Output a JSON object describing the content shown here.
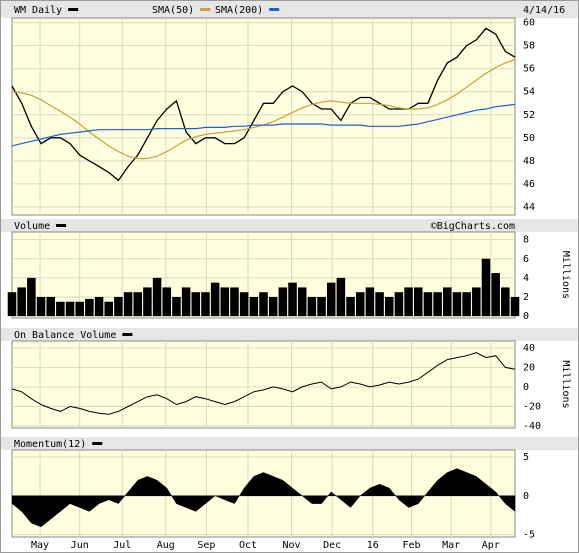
{
  "chart_data": [
    {
      "type": "line",
      "date": "4/14/16",
      "series": [
        {
          "name": "WM Daily",
          "color": "#000000",
          "values": [
            54.5,
            53,
            51,
            49.5,
            50,
            50,
            49.5,
            48.5,
            48,
            47.5,
            47,
            46.3,
            47.5,
            48.5,
            50,
            51.5,
            52.5,
            53.2,
            50.5,
            49.5,
            50,
            50,
            49.5,
            49.5,
            50,
            51.5,
            53,
            53,
            54,
            54.5,
            54,
            53,
            52.5,
            52.5,
            51.5,
            53,
            53.5,
            53.5,
            53,
            52.5,
            52.5,
            52.5,
            53,
            53,
            55,
            56.5,
            57,
            58,
            58.5,
            59.5,
            59,
            57.5,
            57
          ]
        },
        {
          "name": "SMA(50)",
          "color": "#c8a040",
          "values": [
            54,
            53.9,
            53.7,
            53.3,
            52.8,
            52.3,
            51.8,
            51.2,
            50.5,
            49.9,
            49.3,
            48.8,
            48.4,
            48.2,
            48.2,
            48.4,
            48.8,
            49.3,
            49.8,
            50.1,
            50.3,
            50.4,
            50.5,
            50.6,
            50.7,
            50.9,
            51.1,
            51.4,
            51.8,
            52.2,
            52.6,
            52.9,
            53.1,
            53.2,
            53.1,
            53.0,
            53.0,
            53.0,
            52.9,
            52.8,
            52.6,
            52.5,
            52.5,
            52.6,
            52.9,
            53.3,
            53.8,
            54.4,
            55.0,
            55.6,
            56.1,
            56.5,
            56.8
          ]
        },
        {
          "name": "SMA(200)",
          "color": "#1f5fd0",
          "values": [
            49.3,
            49.5,
            49.7,
            49.9,
            50.1,
            50.3,
            50.4,
            50.5,
            50.6,
            50.7,
            50.7,
            50.7,
            50.7,
            50.7,
            50.7,
            50.8,
            50.8,
            50.8,
            50.8,
            50.8,
            50.9,
            50.9,
            50.9,
            51.0,
            51.0,
            51.1,
            51.1,
            51.1,
            51.2,
            51.2,
            51.2,
            51.2,
            51.2,
            51.1,
            51.1,
            51.1,
            51.1,
            51.0,
            51.0,
            51.0,
            51.0,
            51.1,
            51.2,
            51.4,
            51.6,
            51.8,
            52.0,
            52.2,
            52.4,
            52.5,
            52.7,
            52.8,
            52.9
          ]
        }
      ],
      "ylim": [
        43.3,
        60.4
      ],
      "yticks": [
        44,
        46,
        48,
        50,
        52,
        54,
        56,
        58,
        60
      ],
      "grid": true
    },
    {
      "type": "bar",
      "title": "Volume",
      "annotation": "©BigCharts.com",
      "y_label": "Millions",
      "color": "#000000",
      "values": [
        2.5,
        3,
        4,
        2,
        2,
        1.5,
        1.5,
        1.5,
        1.8,
        2,
        1.5,
        2,
        2.5,
        2.5,
        3,
        4,
        3,
        2,
        3,
        2.5,
        2.5,
        3.5,
        3,
        3,
        2.5,
        2,
        2.5,
        2,
        3,
        3.5,
        3,
        2,
        2,
        3.5,
        4,
        2,
        2.5,
        3,
        2.5,
        2,
        2.5,
        3,
        3,
        2.5,
        2.5,
        3,
        2.5,
        2.5,
        3,
        6,
        4.5,
        3,
        2
      ],
      "ylim": [
        -0.2,
        8.8
      ],
      "yticks": [
        0,
        2,
        4,
        6,
        8
      ],
      "grid": true
    },
    {
      "type": "line",
      "title": "On Balance Volume",
      "y_label": "Millions",
      "color": "#000000",
      "values": [
        -2,
        -5,
        -12,
        -18,
        -22,
        -25,
        -20,
        -22,
        -25,
        -27,
        -28,
        -25,
        -20,
        -15,
        -10,
        -8,
        -12,
        -18,
        -15,
        -10,
        -12,
        -15,
        -18,
        -15,
        -10,
        -5,
        -3,
        0,
        -2,
        -5,
        0,
        3,
        5,
        -2,
        0,
        5,
        3,
        0,
        2,
        5,
        3,
        5,
        8,
        15,
        22,
        28,
        30,
        32,
        35,
        30,
        32,
        20,
        18
      ],
      "ylim": [
        -42,
        47
      ],
      "yticks": [
        -40,
        -20,
        0,
        20,
        40
      ],
      "grid": true
    },
    {
      "type": "area",
      "title": "Momentum(12)",
      "color": "#000000",
      "values": [
        -1,
        -2,
        -3.5,
        -4,
        -3,
        -2,
        -1,
        -1.5,
        -2,
        -1,
        -0.5,
        -1,
        0.5,
        2,
        2.5,
        2,
        1,
        -1,
        -1.5,
        -2,
        -1,
        0,
        -0.5,
        -1,
        1,
        2.5,
        3,
        2.5,
        2,
        1,
        0,
        -1,
        -1,
        0.5,
        -0.5,
        -1.5,
        0,
        1,
        1.5,
        1,
        -0.5,
        -1.5,
        -1,
        0.5,
        2,
        3,
        3.5,
        3,
        2.5,
        1.5,
        0.5,
        -1,
        -2
      ],
      "ylim": [
        -5.3,
        5.9
      ],
      "yticks": [
        -5,
        0,
        5
      ],
      "grid": true,
      "xlim": [
        0,
        52
      ],
      "xticks": [
        {
          "value": 2.9,
          "label": "May"
        },
        {
          "value": 7.0,
          "label": "Jun"
        },
        {
          "value": 11.4,
          "label": "Jul"
        },
        {
          "value": 15.9,
          "label": "Aug"
        },
        {
          "value": 20.1,
          "label": "Sep"
        },
        {
          "value": 24.4,
          "label": "Oct"
        },
        {
          "value": 28.9,
          "label": "Nov"
        },
        {
          "value": 33.1,
          "label": "Dec"
        },
        {
          "value": 37.3,
          "label": "16"
        },
        {
          "value": 41.3,
          "label": "Feb"
        },
        {
          "value": 45.4,
          "label": "Mar"
        },
        {
          "value": 49.5,
          "label": "Apr"
        }
      ]
    }
  ]
}
